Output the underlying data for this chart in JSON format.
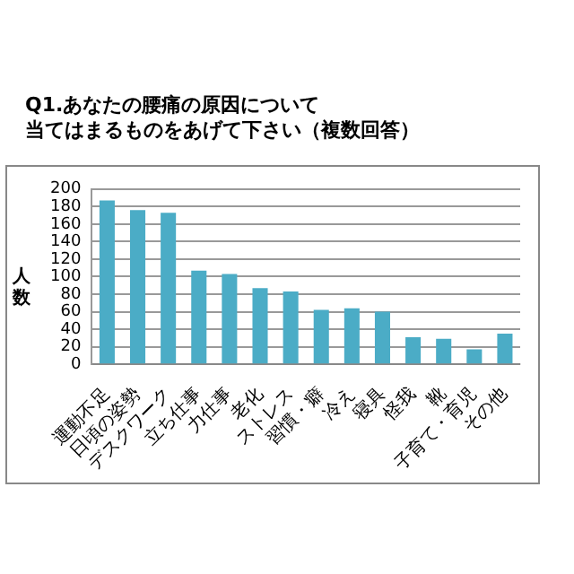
{
  "chart_data": {
    "type": "bar",
    "title": "Q1.あなたの腰痛の原因について",
    "subtitle": "当てはまるものをあげて下さい（複数回答）",
    "ylabel": "人数",
    "categories": [
      "運動不足",
      "日頃の姿勢",
      "デスクワーク",
      "立ち仕事",
      "力仕事",
      "老化",
      "ストレス",
      "習慣・癖",
      "冷え",
      "寝具",
      "怪我",
      "靴",
      "子育て・育児",
      "その他"
    ],
    "values": [
      187,
      176,
      173,
      107,
      103,
      87,
      83,
      62,
      64,
      60,
      31,
      29,
      17,
      35
    ],
    "color": "#4bacc6",
    "ylim": [
      0,
      200
    ],
    "yticks": [
      0,
      20,
      40,
      60,
      80,
      100,
      120,
      140,
      160,
      180,
      200
    ],
    "grid": "y",
    "legend": false
  }
}
